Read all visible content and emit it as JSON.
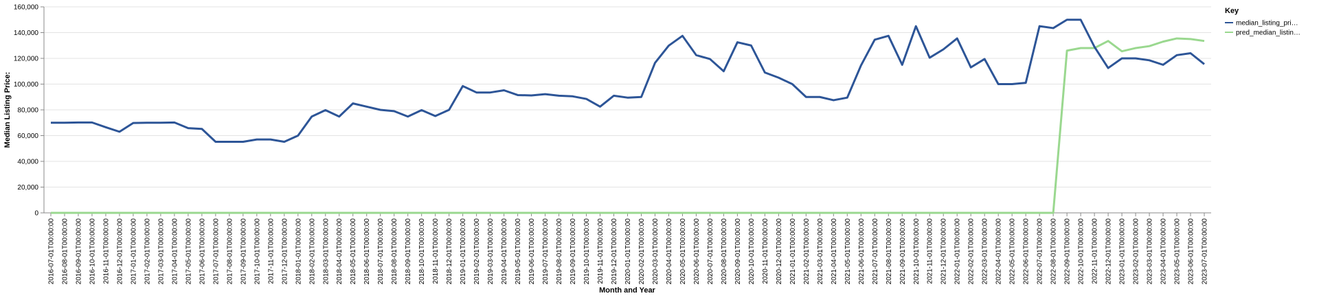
{
  "chart_data": {
    "type": "line",
    "y_label": "Median Listing Price:",
    "x_label": "Month and Year",
    "legend_title": "Key",
    "legend_position": "top-right",
    "grid": true,
    "categories": [
      "2016-07-01T00:00:00",
      "2016-08-01T00:00:00",
      "2016-09-01T00:00:00",
      "2016-10-01T00:00:00",
      "2016-11-01T00:00:00",
      "2016-12-01T00:00:00",
      "2017-01-01T00:00:00",
      "2017-02-01T00:00:00",
      "2017-03-01T00:00:00",
      "2017-04-01T00:00:00",
      "2017-05-01T00:00:00",
      "2017-06-01T00:00:00",
      "2017-07-01T00:00:00",
      "2017-08-01T00:00:00",
      "2017-09-01T00:00:00",
      "2017-10-01T00:00:00",
      "2017-11-01T00:00:00",
      "2017-12-01T00:00:00",
      "2018-01-01T00:00:00",
      "2018-02-01T00:00:00",
      "2018-03-01T00:00:00",
      "2018-04-01T00:00:00",
      "2018-05-01T00:00:00",
      "2018-06-01T00:00:00",
      "2018-07-01T00:00:00",
      "2018-08-01T00:00:00",
      "2018-09-01T00:00:00",
      "2018-10-01T00:00:00",
      "2018-11-01T00:00:00",
      "2018-12-01T00:00:00",
      "2019-01-01T00:00:00",
      "2019-02-01T00:00:00",
      "2019-03-01T00:00:00",
      "2019-04-01T00:00:00",
      "2019-05-01T00:00:00",
      "2019-06-01T00:00:00",
      "2019-07-01T00:00:00",
      "2019-08-01T00:00:00",
      "2019-09-01T00:00:00",
      "2019-10-01T00:00:00",
      "2019-11-01T00:00:00",
      "2019-12-01T00:00:00",
      "2020-01-01T00:00:00",
      "2020-02-01T00:00:00",
      "2020-03-01T00:00:00",
      "2020-04-01T00:00:00",
      "2020-05-01T00:00:00",
      "2020-06-01T00:00:00",
      "2020-07-01T00:00:00",
      "2020-08-01T00:00:00",
      "2020-09-01T00:00:00",
      "2020-10-01T00:00:00",
      "2020-11-01T00:00:00",
      "2020-12-01T00:00:00",
      "2021-01-01T00:00:00",
      "2021-02-01T00:00:00",
      "2021-03-01T00:00:00",
      "2021-04-01T00:00:00",
      "2021-05-01T00:00:00",
      "2021-06-01T00:00:00",
      "2021-07-01T00:00:00",
      "2021-08-01T00:00:00",
      "2021-09-01T00:00:00",
      "2021-10-01T00:00:00",
      "2021-11-01T00:00:00",
      "2021-12-01T00:00:00",
      "2022-01-01T00:00:00",
      "2022-02-01T00:00:00",
      "2022-03-01T00:00:00",
      "2022-04-01T00:00:00",
      "2022-05-01T00:00:00",
      "2022-06-01T00:00:00",
      "2022-07-01T00:00:00",
      "2022-08-01T00:00:00",
      "2022-09-01T00:00:00",
      "2022-10-01T00:00:00",
      "2022-11-01T00:00:00",
      "2022-12-01T00:00:00",
      "2023-01-01T00:00:00",
      "2023-02-01T00:00:00",
      "2023-03-01T00:00:00",
      "2023-04-01T00:00:00",
      "2023-05-01T00:00:00",
      "2023-06-01T00:00:00",
      "2023-07-01T00:00:00"
    ],
    "series": [
      {
        "name": "median_listing_pri…",
        "color": "#2d5597",
        "values": [
          70000,
          70000,
          70200,
          70200,
          66500,
          63000,
          69800,
          70000,
          70000,
          70200,
          65800,
          65200,
          55200,
          55200,
          55200,
          57000,
          57000,
          55200,
          60000,
          74800,
          79800,
          74800,
          85000,
          82500,
          80000,
          79000,
          74800,
          79800,
          75200,
          80000,
          98500,
          93500,
          93500,
          95200,
          91500,
          91200,
          92200,
          91000,
          90500,
          88500,
          82500,
          91000,
          89500,
          90000,
          116500,
          129900,
          137500,
          122500,
          119500,
          110000,
          132500,
          130000,
          109000,
          105000,
          100000,
          90000,
          90000,
          87500,
          89500,
          114500,
          134500,
          137500,
          115000,
          145000,
          120500,
          127000,
          135500,
          113000,
          119500,
          100000,
          100000,
          101000,
          145000,
          143500,
          150000,
          150000,
          129000,
          112500,
          120000,
          120000,
          118500,
          115000,
          122500,
          124000,
          115500
        ]
      },
      {
        "name": "pred_median_listin…",
        "color": "#9ad88f",
        "values": [
          0,
          0,
          0,
          0,
          0,
          0,
          0,
          0,
          0,
          0,
          0,
          0,
          0,
          0,
          0,
          0,
          0,
          0,
          0,
          0,
          0,
          0,
          0,
          0,
          0,
          0,
          0,
          0,
          0,
          0,
          0,
          0,
          0,
          0,
          0,
          0,
          0,
          0,
          0,
          0,
          0,
          0,
          0,
          0,
          0,
          0,
          0,
          0,
          0,
          0,
          0,
          0,
          0,
          0,
          0,
          0,
          0,
          0,
          0,
          0,
          0,
          0,
          0,
          0,
          0,
          0,
          0,
          0,
          0,
          0,
          0,
          0,
          0,
          0,
          126000,
          128000,
          128000,
          133500,
          125500,
          128000,
          129500,
          133000,
          135500,
          135000,
          133500
        ]
      }
    ],
    "ylim": [
      0,
      160000
    ],
    "yticks": [
      0,
      {
        "value": 20000,
        "label": "20,000"
      },
      {
        "value": 40000,
        "label": "40,000"
      },
      {
        "value": 60000,
        "label": "60,000"
      },
      {
        "value": 80000,
        "label": "80,000"
      },
      {
        "value": 100000,
        "label": "100,000"
      },
      {
        "value": 120000,
        "label": "120,000"
      },
      {
        "value": 140000,
        "label": "140,000"
      },
      {
        "value": 160000,
        "label": "160,000"
      }
    ]
  }
}
